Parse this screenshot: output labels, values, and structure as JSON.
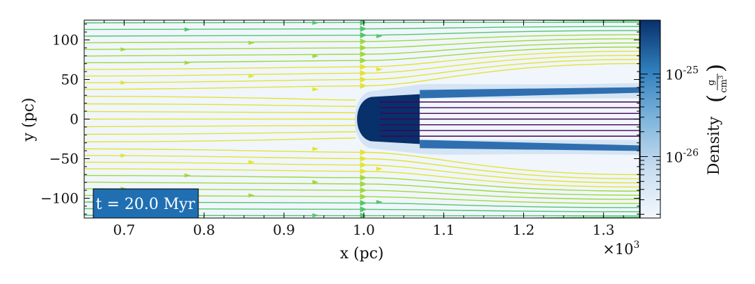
{
  "chart_data": {
    "type": "heatmap",
    "subtype": "density slice with velocity streamlines",
    "xlabel": "x  (pc)",
    "ylabel": "y  (pc)",
    "x_multiplier_label": "×10",
    "x_multiplier_exponent": "3",
    "xlim": [
      0.65,
      1.345
    ],
    "ylim": [
      -125,
      125
    ],
    "x_ticks": [
      0.7,
      0.8,
      0.9,
      1.0,
      1.1,
      1.2,
      1.3
    ],
    "x_tick_labels": [
      "0.7",
      "0.8",
      "0.9",
      "1.0",
      "1.1",
      "1.2",
      "1.3"
    ],
    "y_ticks": [
      -100,
      -50,
      0,
      50,
      100
    ],
    "y_tick_labels": [
      "−100",
      "−50",
      "0",
      "50",
      "100"
    ],
    "colorbar": {
      "label": "Density",
      "unit_numerator": "g",
      "unit_denominator": "cm",
      "unit_denominator_exponent": "3",
      "scale": "log",
      "range": [
        1.8e-27,
        4.5e-25
      ],
      "ticks": [
        {
          "value": 1e-25,
          "mantissa": "10",
          "exponent": "-25"
        },
        {
          "value": 1e-26,
          "mantissa": "10",
          "exponent": "-26"
        }
      ],
      "colors": [
        "#f3f8fd",
        "#c8ddf0",
        "#7fb5dc",
        "#2f7ebc",
        "#08306b"
      ]
    },
    "annotation": "t = 20.0 Myr",
    "annotation_color": "#1f6fb2",
    "grid": false,
    "cloud": {
      "head_x": 0.99,
      "tail_x": 1.345,
      "half_width": 28
    },
    "streamline_colors": {
      "fast": "#e3e331",
      "mid": "#53c56c",
      "slow": "#440154"
    }
  }
}
